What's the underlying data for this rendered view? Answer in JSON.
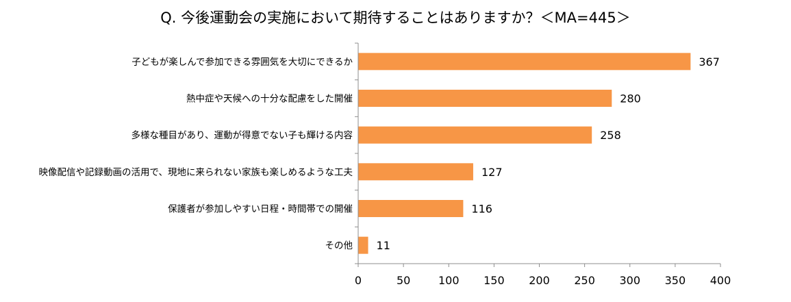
{
  "chart_data": {
    "type": "bar",
    "orientation": "horizontal",
    "title": "Q. 今後運動会の実施において期待することはありますか？＜MA=445＞",
    "categories": [
      "子どもが楽しんで参加できる雰囲気を大切にできるか",
      "熱中症や天候への十分な配慮をした開催",
      "多様な種目があり、運動が得意でない子も輝ける内容",
      "映像配信や記録動画の活用で、現地に来られない家族も楽しめるような工夫",
      "保護者が参加しやすい日程・時間帯での開催",
      "その他"
    ],
    "values": [
      367,
      280,
      258,
      127,
      116,
      11
    ],
    "xlim": [
      0,
      400
    ],
    "xticks": [
      0,
      50,
      100,
      150,
      200,
      250,
      300,
      350,
      400
    ],
    "bar_color": "#f79646",
    "grid": false,
    "data_labels": true
  }
}
